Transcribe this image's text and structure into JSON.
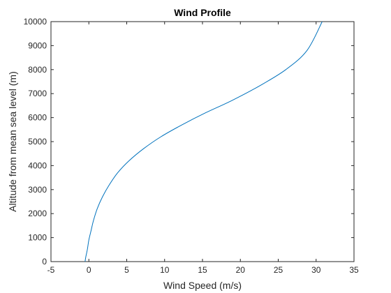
{
  "chart_data": {
    "type": "line",
    "title": "Wind Profile",
    "xlabel": "Wind Speed (m/s)",
    "ylabel": "Altitude from mean sea level (m)",
    "xlim": [
      -5,
      35
    ],
    "ylim": [
      0,
      10000
    ],
    "xticks": [
      "-5",
      "0",
      "5",
      "10",
      "15",
      "20",
      "25",
      "30",
      "35"
    ],
    "yticks": [
      "0",
      "1000",
      "2000",
      "3000",
      "4000",
      "5000",
      "6000",
      "7000",
      "8000",
      "9000",
      "10000"
    ],
    "grid": false,
    "series": [
      {
        "color": "#0072BD",
        "x": [
          -0.5,
          -0.4,
          -0.2,
          0.0,
          0.3,
          0.6,
          1.1,
          1.8,
          2.7,
          3.8,
          5.3,
          7.2,
          9.5,
          12.3,
          15.4,
          18.8,
          22.4,
          26.0,
          28.8,
          30.8
        ],
        "y": [
          0,
          200,
          500,
          900,
          1300,
          1700,
          2200,
          2700,
          3200,
          3700,
          4200,
          4700,
          5200,
          5700,
          6200,
          6700,
          7300,
          8000,
          8800,
          10000
        ]
      }
    ]
  }
}
